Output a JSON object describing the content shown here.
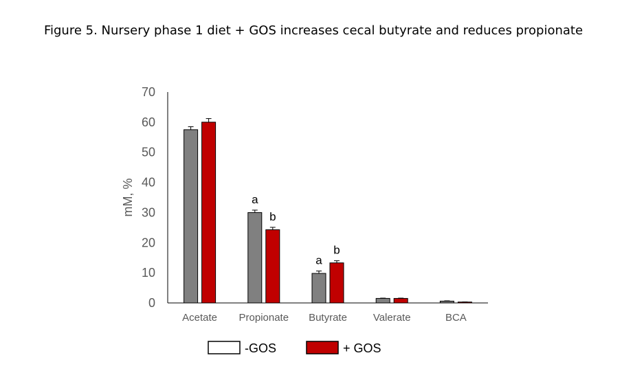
{
  "title": "Figure 5. Nursery phase 1 diet + GOS increases cecal butyrate and reduces propionate",
  "chart_data": {
    "type": "bar",
    "ylabel": "mM, %",
    "ylim": [
      0,
      70
    ],
    "yticks": [
      0,
      10,
      20,
      30,
      40,
      50,
      60,
      70
    ],
    "grid": false,
    "legend_placement": "bottom-center",
    "categories": [
      "Acetate",
      "Propionate",
      "Butyrate",
      "Valerate",
      "BCA"
    ],
    "series": [
      {
        "name": "-GOS",
        "color": "#808080",
        "legend_swatch_fill": "#ffffff",
        "values": [
          57.5,
          30.0,
          9.8,
          1.5,
          0.6
        ],
        "errors": [
          1.0,
          0.8,
          0.8,
          0.1,
          0.1
        ],
        "sig_letters": [
          "",
          "a",
          "a",
          "",
          ""
        ]
      },
      {
        "name": "+ GOS",
        "color": "#c00000",
        "legend_swatch_fill": "#c00000",
        "values": [
          60.0,
          24.3,
          13.3,
          1.5,
          0.3
        ],
        "errors": [
          1.2,
          0.8,
          0.7,
          0.1,
          0.05
        ],
        "sig_letters": [
          "",
          "b",
          "b",
          "",
          ""
        ]
      }
    ]
  }
}
